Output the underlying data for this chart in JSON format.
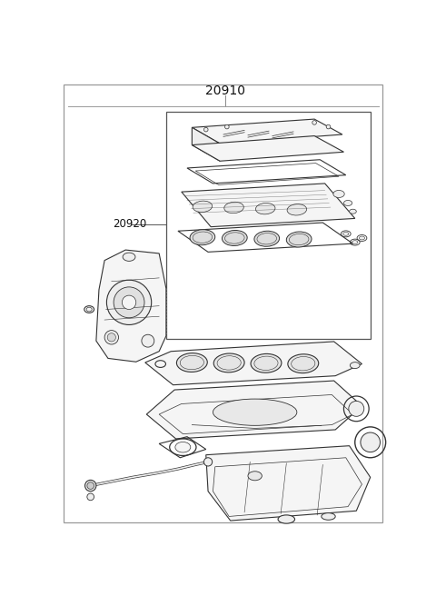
{
  "title": "20910",
  "label_20920": "20920",
  "bg_color": "#ffffff",
  "line_color": "#333333",
  "figure_width": 4.8,
  "figure_height": 6.56,
  "dpi": 100,
  "title_fontsize": 10,
  "label_fontsize": 8.5
}
